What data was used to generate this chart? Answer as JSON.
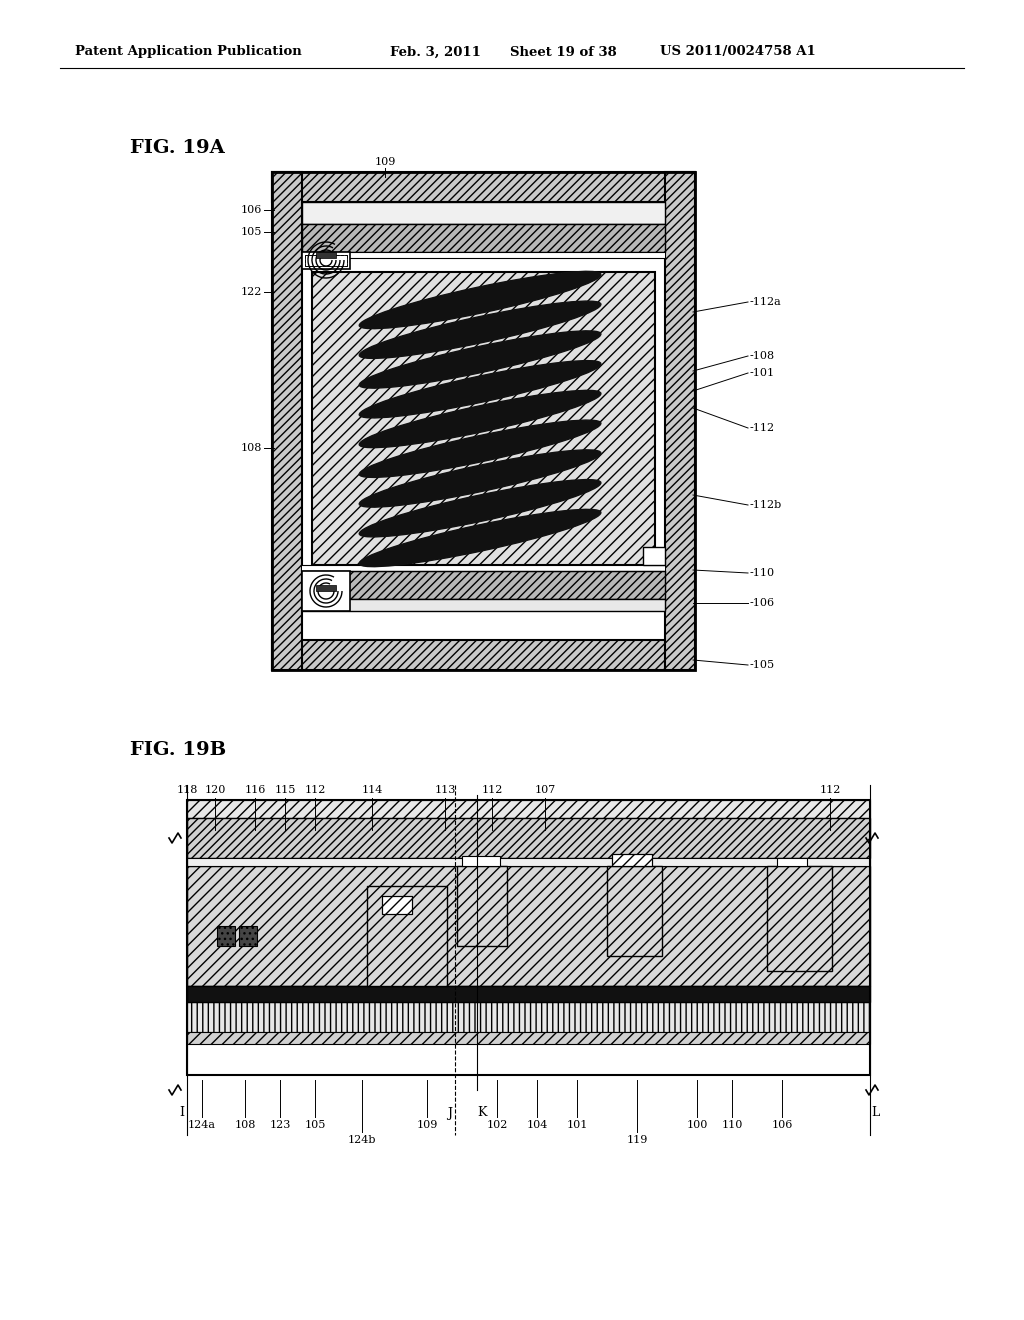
{
  "background_color": "#ffffff",
  "header_text": "Patent Application Publication",
  "header_date": "Feb. 3, 2011",
  "header_sheet": "Sheet 19 of 38",
  "header_patent": "US 2011/0024758 A1",
  "fig19a_label": "FIG. 19A",
  "fig19b_label": "FIG. 19B"
}
